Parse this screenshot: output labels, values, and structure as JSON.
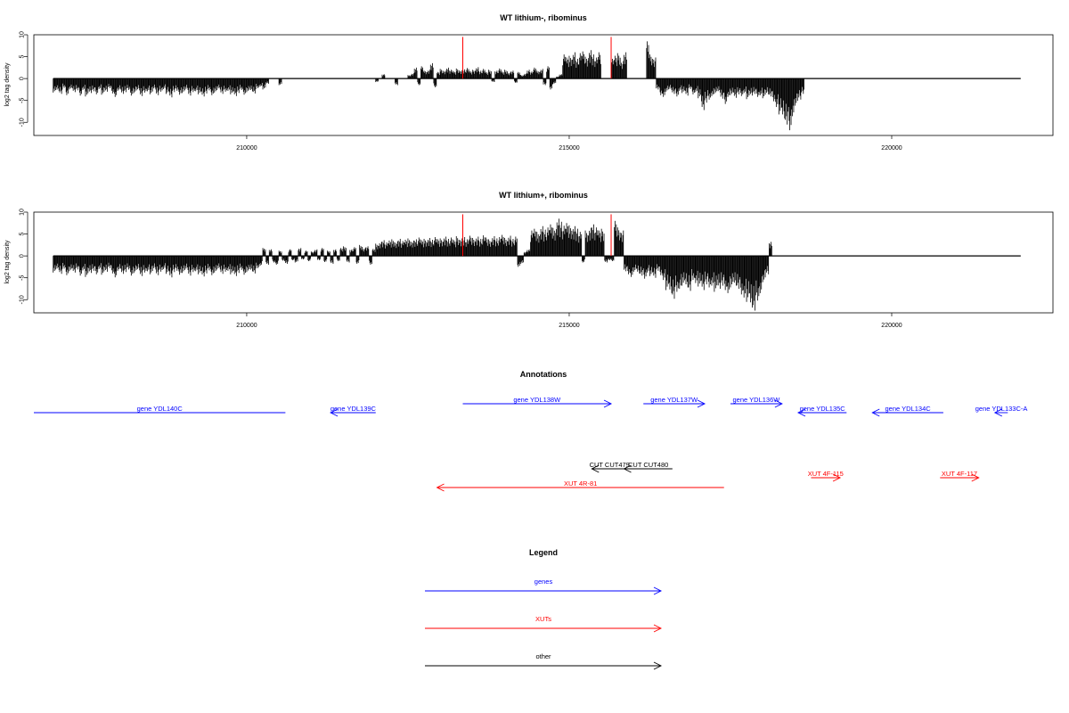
{
  "colors": {
    "genes": "#0000ff",
    "xuts": "#ff0000",
    "other": "#000000",
    "marker": "#ff0000",
    "bars": "#000000"
  },
  "chart_data": [
    {
      "type": "bar",
      "title": "WT lithium-, ribominus",
      "ylabel": "log2 tag density",
      "xlabel": "",
      "xlim": [
        206700,
        222500
      ],
      "ylim": [
        -13,
        10
      ],
      "xticks": [
        210000,
        215000,
        220000
      ],
      "yticks": [
        -10,
        -5,
        0,
        5,
        10
      ],
      "axis_span": [
        207000,
        222000
      ],
      "markers": [
        213350,
        215650
      ],
      "marker_height": 9.5,
      "x_start": 207000,
      "bin": 50,
      "values": [
        -3.2,
        -2.8,
        -3.5,
        -2.1,
        -3.8,
        -2.5,
        -3.1,
        -2.7,
        -3.9,
        -2.6,
        -4.1,
        -3.3,
        -2.9,
        -3.6,
        -2.4,
        -3.7,
        -3.0,
        -2.2,
        -3.4,
        -4.2,
        -2.8,
        -3.5,
        -3.1,
        -2.6,
        -3.9,
        -3.3,
        -2.7,
        -4.0,
        -3.2,
        -2.9,
        -3.6,
        -2.5,
        -3.8,
        -3.0,
        -2.4,
        -3.5,
        -4.3,
        -3.1,
        -2.8,
        -3.7,
        -3.3,
        -2.6,
        -3.9,
        -3.1,
        -2.9,
        -3.6,
        -4.1,
        -3.4,
        -2.7,
        -3.8,
        -3.2,
        -2.5,
        -3.5,
        -3.0,
        -2.8,
        -3.6,
        -4.0,
        -3.3,
        -2.6,
        -3.7,
        -3.1,
        -2.9,
        -3.4,
        -2.2,
        -1.8,
        -2.5,
        -1.2,
        0,
        0,
        0,
        -1.5,
        0,
        0,
        0,
        0,
        0,
        0,
        0,
        0,
        0,
        0,
        0,
        0,
        0,
        0,
        0,
        0,
        0,
        0,
        0,
        0,
        0,
        0,
        0,
        0,
        0,
        0,
        0,
        0,
        0,
        -0.8,
        0,
        1.0,
        0,
        0,
        0,
        -1.5,
        0,
        0,
        0,
        0.8,
        1.2,
        2.5,
        -1.5,
        2.8,
        1.8,
        2.0,
        3.5,
        -2.0,
        1.5,
        2.2,
        1.8,
        2.5,
        2.0,
        1.6,
        2.3,
        1.9,
        2.1,
        2.4,
        1.7,
        2.0,
        2.6,
        1.8,
        2.2,
        1.5,
        2.0,
        -0.8,
        1.8,
        2.3,
        1.6,
        2.0,
        1.4,
        1.8,
        -1.0,
        1.5,
        0.8,
        1.2,
        2.0,
        1.6,
        2.5,
        1.8,
        2.2,
        -1.5,
        2.8,
        -2.5,
        -1.2,
        0.5,
        1.0,
        5.5,
        4.8,
        5.2,
        6.0,
        4.5,
        5.8,
        6.2,
        5.0,
        6.5,
        5.5,
        4.8,
        6.0,
        0,
        0,
        0,
        4.5,
        5.2,
        5.8,
        4.0,
        6.0,
        0,
        0,
        0,
        0,
        0,
        0,
        8.5,
        5.5,
        4.8,
        -2.5,
        -3.8,
        -4.2,
        -3.0,
        -2.6,
        -3.5,
        -4.1,
        -2.8,
        -3.3,
        -3.9,
        -2.4,
        -3.6,
        -3.1,
        -4.5,
        -7.2,
        -5.5,
        -4.8,
        -4.0,
        -3.5,
        -3.2,
        -4.6,
        -5.8,
        -4.2,
        -3.8,
        -4.4,
        -3.6,
        -4.0,
        -3.3,
        -4.7,
        -3.9,
        -3.5,
        -4.2,
        -3.8,
        -4.5,
        -3.6,
        -4.1,
        -5.2,
        -6.5,
        -8.2,
        -9.1,
        -10.5,
        -11.8,
        -8.6,
        -6.2,
        -4.8,
        -3.5
      ],
      "y_has_values": true
    },
    {
      "type": "bar",
      "title": "WT lithium+, ribominus",
      "ylabel": "log2 tag density",
      "xlabel": "",
      "xlim": [
        206700,
        222500
      ],
      "ylim": [
        -13,
        10
      ],
      "xticks": [
        210000,
        215000,
        220000
      ],
      "yticks": [
        -10,
        -5,
        0,
        5,
        10
      ],
      "axis_span": [
        207000,
        222000
      ],
      "markers": [
        213350,
        215650
      ],
      "marker_height": 9.5,
      "x_start": 207000,
      "bin": 50,
      "values": [
        -3.8,
        -3.2,
        -4.1,
        -2.9,
        -4.4,
        -3.5,
        -3.8,
        -3.1,
        -4.5,
        -3.3,
        -4.8,
        -3.9,
        -3.4,
        -4.2,
        -3.0,
        -4.3,
        -3.6,
        -2.8,
        -4.0,
        -4.9,
        -3.4,
        -4.1,
        -3.7,
        -3.1,
        -4.5,
        -3.9,
        -3.3,
        -4.6,
        -3.8,
        -3.5,
        -4.2,
        -3.1,
        -4.4,
        -3.6,
        -3.0,
        -4.1,
        -4.9,
        -3.7,
        -3.4,
        -4.3,
        -3.9,
        -3.2,
        -4.5,
        -3.7,
        -3.5,
        -4.2,
        -4.7,
        -4.0,
        -3.3,
        -4.4,
        -3.8,
        -3.1,
        -4.1,
        -3.6,
        -3.4,
        -4.2,
        -4.6,
        -3.9,
        -3.2,
        -4.3,
        -3.7,
        -3.5,
        -4.0,
        -2.8,
        -2.2,
        1.8,
        -2.0,
        1.5,
        -1.5,
        -2.0,
        1.2,
        -1.2,
        -1.8,
        1.5,
        -1.0,
        -1.5,
        1.8,
        -0.8,
        1.2,
        -1.2,
        1.0,
        1.5,
        -1.0,
        1.8,
        -1.4,
        1.2,
        -1.8,
        1.5,
        -1.2,
        1.8,
        2.2,
        -1.5,
        1.5,
        2.0,
        -1.8,
        2.5,
        1.8,
        2.2,
        -2.0,
        1.6,
        2.8,
        3.2,
        3.6,
        3.1,
        3.5,
        3.8,
        3.3,
        3.9,
        3.4,
        3.7,
        4.0,
        3.5,
        3.8,
        4.2,
        3.6,
        3.9,
        4.1,
        3.7,
        4.3,
        3.8,
        4.0,
        4.4,
        3.9,
        4.2,
        3.6,
        4.5,
        4.0,
        4.3,
        3.8,
        4.6,
        4.1,
        4.4,
        3.9,
        4.7,
        4.2,
        3.8,
        4.5,
        4.0,
        4.3,
        4.8,
        4.1,
        4.6,
        3.9,
        4.4,
        -2.5,
        -1.8,
        1.0,
        1.5,
        5.8,
        6.2,
        5.5,
        6.8,
        6.0,
        6.5,
        7.2,
        6.4,
        8.5,
        7.8,
        6.9,
        7.5,
        7.0,
        6.8,
        6.2,
        5.5,
        -1.5,
        5.8,
        6.4,
        7.2,
        6.5,
        5.8,
        6.2,
        -1.5,
        -1.0,
        -1.2,
        8.0,
        6.5,
        5.8,
        -3.5,
        -4.2,
        -4.8,
        -3.6,
        -4.0,
        -4.5,
        -5.2,
        -3.8,
        -4.6,
        -5.0,
        -3.4,
        -4.4,
        -5.5,
        -7.8,
        -8.5,
        -9.8,
        -8.2,
        -7.5,
        -6.8,
        -7.2,
        -8.0,
        -5.5,
        -6.2,
        -7.0,
        -7.8,
        -6.5,
        -7.2,
        -6.8,
        -8.2,
        -7.5,
        -6.8,
        -7.8,
        -8.5,
        -7.2,
        -6.8,
        -7.5,
        -8.8,
        -9.5,
        -10.5,
        -11.8,
        -12.5,
        -10.2,
        -8.5,
        -6.0,
        -4.2,
        3.2
      ],
      "y_has_values": true
    }
  ],
  "annotations": {
    "title": "Annotations",
    "xlim": [
      206700,
      222500
    ],
    "genes": [
      {
        "label": "gene YDL140C",
        "start": 206700,
        "end": 210600,
        "dir": "none",
        "row": 2
      },
      {
        "label": "gene YDL139C",
        "start": 211300,
        "end": 212000,
        "dir": "left",
        "row": 2
      },
      {
        "label": "gene YDL138W",
        "start": 213350,
        "end": 215650,
        "dir": "right",
        "row": 1
      },
      {
        "label": "gene YDL137W",
        "start": 216150,
        "end": 217100,
        "dir": "right",
        "row": 1
      },
      {
        "label": "gene YDL136W",
        "start": 217500,
        "end": 218300,
        "dir": "right",
        "row": 1
      },
      {
        "label": "gene YDL135C",
        "start": 218550,
        "end": 219300,
        "dir": "left",
        "row": 2
      },
      {
        "label": "gene YDL134C",
        "start": 219700,
        "end": 220800,
        "dir": "left",
        "row": 2
      },
      {
        "label": "gene YDL133C-A",
        "start": 221600,
        "end": 221800,
        "dir": "left",
        "row": 2
      }
    ],
    "cuts": [
      {
        "label": "CUT CUT479",
        "start": 215350,
        "end": 215900,
        "dir": "left"
      },
      {
        "label": "CUT CUT480",
        "start": 215850,
        "end": 216600,
        "dir": "left"
      }
    ],
    "xuts": [
      {
        "label": "XUT 4R-81",
        "start": 212950,
        "end": 217400,
        "dir": "left"
      },
      {
        "label": "XUT 4F-115",
        "start": 218750,
        "end": 219200,
        "dir": "right"
      },
      {
        "label": "XUT 4F-117",
        "start": 220750,
        "end": 221350,
        "dir": "right"
      }
    ]
  },
  "legend": {
    "title": "Legend",
    "items": [
      {
        "label": "genes",
        "color_key": "genes"
      },
      {
        "label": "XUTs",
        "color_key": "xuts"
      },
      {
        "label": "other",
        "color_key": "other"
      }
    ]
  }
}
